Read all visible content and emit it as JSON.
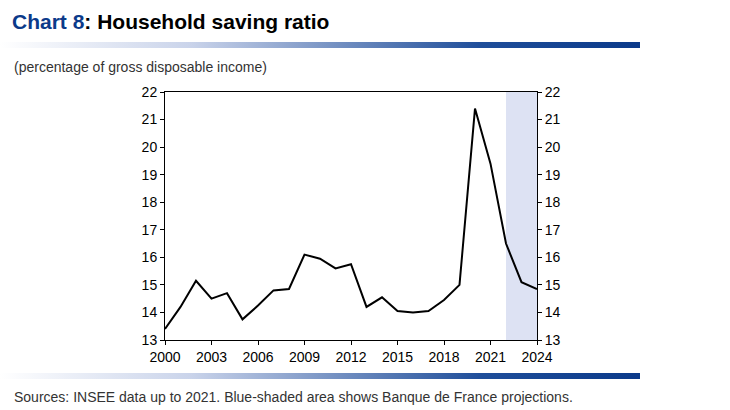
{
  "chart_data": {
    "type": "line",
    "title": "Chart 8: Household saving ratio",
    "subtitle": "(percentage of gross disposable income)",
    "source": "Sources: INSEE data up to 2021. Blue-shaded area shows Banque de France projections.",
    "x": [
      2000,
      2001,
      2002,
      2003,
      2004,
      2005,
      2006,
      2007,
      2008,
      2009,
      2010,
      2011,
      2012,
      2013,
      2014,
      2015,
      2016,
      2017,
      2018,
      2019,
      2020,
      2021,
      2022,
      2023,
      2024
    ],
    "values": [
      13.4,
      14.2,
      15.15,
      14.5,
      14.7,
      13.75,
      14.25,
      14.8,
      14.85,
      16.1,
      15.95,
      15.6,
      15.75,
      14.2,
      14.55,
      14.05,
      14.0,
      14.05,
      14.45,
      15.0,
      21.4,
      19.4,
      16.5,
      15.1,
      14.85
    ],
    "color": "#000000",
    "xlim": [
      2000,
      2024
    ],
    "xticks": [
      2000,
      2003,
      2006,
      2009,
      2012,
      2015,
      2018,
      2021,
      2024
    ],
    "ylim": [
      13,
      22
    ],
    "yticks": [
      13,
      14,
      15,
      16,
      17,
      18,
      19,
      20,
      21,
      22
    ],
    "y2lim": [
      13,
      22
    ],
    "y2ticks": [
      13,
      14,
      15,
      16,
      17,
      18,
      19,
      20,
      21,
      22
    ],
    "shaded_x": [
      2022,
      2024
    ],
    "grid": false
  }
}
